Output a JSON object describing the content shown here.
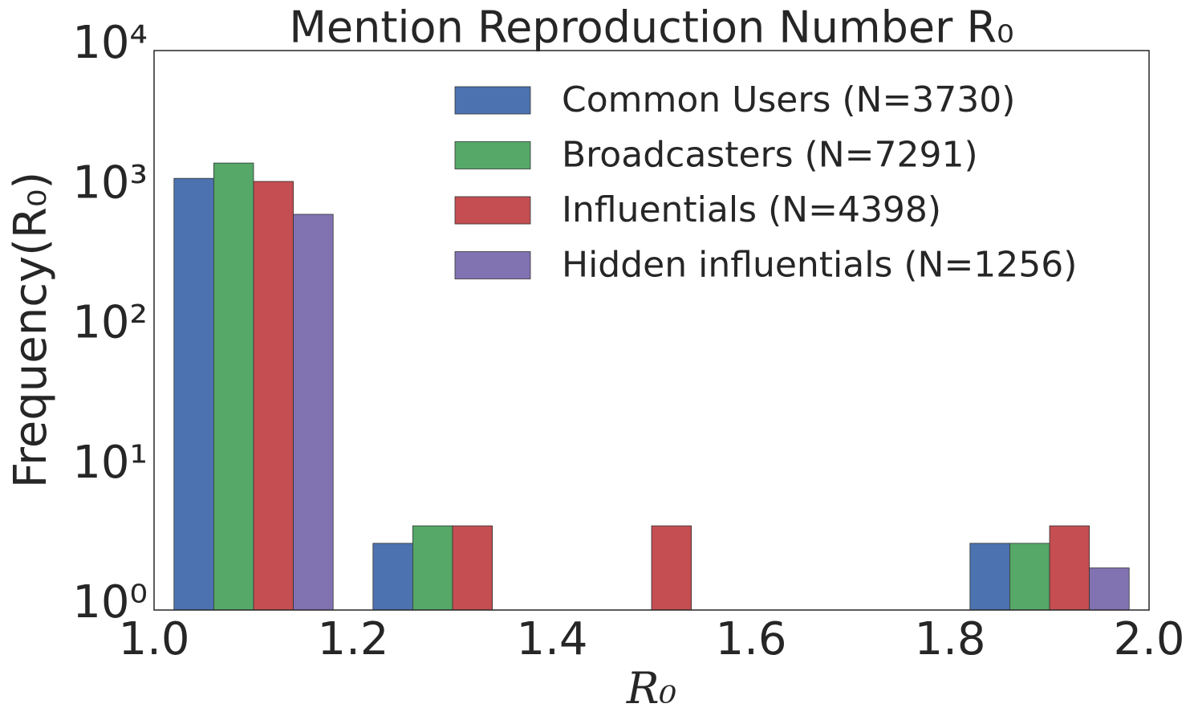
{
  "chart_data": {
    "type": "histogram",
    "title": "Mention Reproduction Number R₀",
    "xlabel": "R₀",
    "ylabel": "Frequency(R₀)",
    "bins": [
      1.0,
      1.2,
      1.4,
      1.6,
      1.8,
      2.0
    ],
    "series": [
      {
        "name": "Common Users (N=3730)",
        "color": "#4c72b0",
        "values": [
          1220,
          3,
          0,
          0,
          3
        ]
      },
      {
        "name": "Broadcasters (N=7291)",
        "color": "#55a868",
        "values": [
          1570,
          4,
          0,
          0,
          3
        ]
      },
      {
        "name": "Influentials (N=4398)",
        "color": "#c44e52",
        "values": [
          1160,
          4,
          4,
          0,
          4
        ]
      },
      {
        "name": "Hidden influentials (N=1256)",
        "color": "#8172b2",
        "values": [
          675,
          0,
          0,
          0,
          2
        ]
      }
    ],
    "xlim": [
      1.0,
      2.0
    ],
    "xticks": [
      {
        "value": 1.0,
        "label": "1.0"
      },
      1.2,
      1.4,
      1.6,
      1.8,
      {
        "value": 2.0,
        "label": "2.0"
      }
    ],
    "ylim": [
      1,
      10000
    ],
    "yticks": [
      {
        "value": 1,
        "label": "10⁰"
      },
      {
        "value": 10,
        "label": "10¹"
      },
      {
        "value": 100,
        "label": "10²"
      },
      {
        "value": 1000,
        "label": "10³"
      },
      {
        "value": 10000,
        "label": "10⁴"
      }
    ],
    "log_y": true,
    "grid": false,
    "legend": "upper right"
  }
}
